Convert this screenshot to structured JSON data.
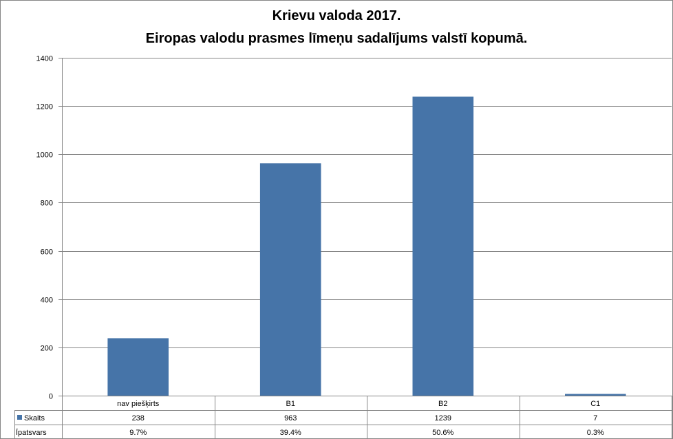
{
  "title": "Krievu valoda 2017.",
  "subtitle": "Eiropas valodu prasmes līmeņu sadalījums valstī kopumā.",
  "colors": {
    "bar": "#4674a8",
    "grid": "#868686",
    "axis": "#868686"
  },
  "chart_data": {
    "type": "bar",
    "title": "Krievu valoda 2017.",
    "subtitle": "Eiropas valodu prasmes līmeņu sadalījums valstī kopumā.",
    "categories": [
      "nav piešķirts",
      "B1",
      "B2",
      "C1"
    ],
    "series": [
      {
        "name": "Skaits",
        "values": [
          238,
          963,
          1239,
          7
        ]
      }
    ],
    "data_table": {
      "rows": [
        {
          "label": "Skaits",
          "values": [
            "238",
            "963",
            "1239",
            "7"
          ]
        },
        {
          "label": "Īpatsvars",
          "values": [
            "9.7%",
            "39.4%",
            "50.6%",
            "0.3%"
          ]
        }
      ]
    },
    "ylim": [
      0,
      1400
    ],
    "yticks": [
      0,
      200,
      400,
      600,
      800,
      1000,
      1200,
      1400
    ],
    "grid": true,
    "legend": "data-table-left"
  }
}
